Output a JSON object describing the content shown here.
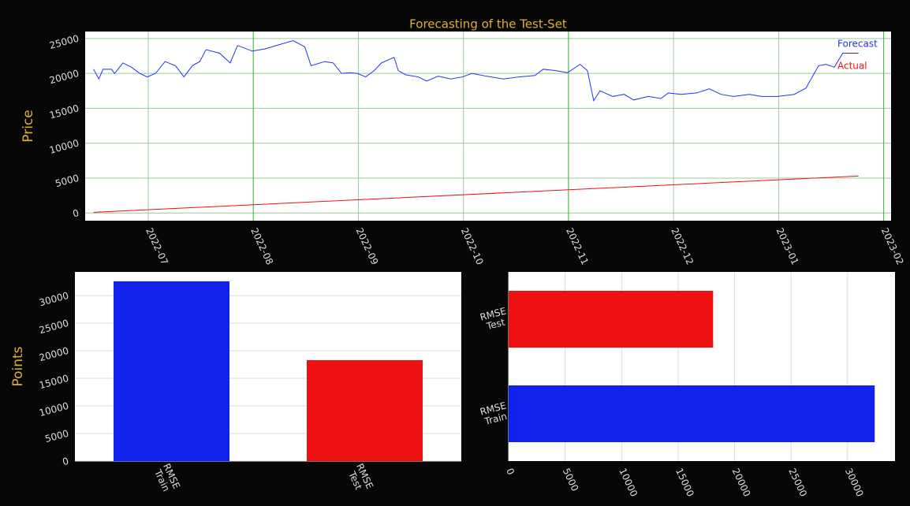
{
  "chart_data": [
    {
      "type": "line",
      "title": "Forecasting of the Test-Set",
      "ylabel": "Price",
      "xlim": [
        -0.6,
        7.07
      ],
      "xticks": [
        {
          "value": 0,
          "label": "2022-07"
        },
        {
          "value": 1,
          "label": "2022-08"
        },
        {
          "value": 2,
          "label": "2022-09"
        },
        {
          "value": 3,
          "label": "2022-10"
        },
        {
          "value": 4,
          "label": "2022-11"
        },
        {
          "value": 5,
          "label": "2022-12"
        },
        {
          "value": 6,
          "label": "2023-01"
        },
        {
          "value": 7,
          "label": "2023-02"
        }
      ],
      "ylim": [
        -1100,
        26000
      ],
      "yticks": [
        0,
        5000,
        10000,
        15000,
        20000,
        25000
      ],
      "grid": true,
      "legend": "upper right",
      "series": [
        {
          "name": "Forecast",
          "color": "#2233ee",
          "x": [
            -0.52,
            -0.47,
            -0.43,
            -0.35,
            -0.32,
            -0.24,
            -0.16,
            -0.08,
            -0.01,
            0.07,
            0.16,
            0.26,
            0.34,
            0.42,
            0.49,
            0.55,
            0.68,
            0.78,
            0.85,
            0.99,
            1.11,
            1.22,
            1.38,
            1.49,
            1.55,
            1.68,
            1.76,
            1.84,
            1.92,
            1.99,
            2.07,
            2.15,
            2.22,
            2.34,
            2.38,
            2.45,
            2.57,
            2.65,
            2.76,
            2.88,
            2.99,
            3.08,
            3.22,
            3.38,
            3.53,
            3.68,
            3.76,
            3.88,
            3.99,
            4.11,
            4.18,
            4.24,
            4.3,
            4.42,
            4.53,
            4.62,
            4.76,
            4.88,
            4.95,
            5.07,
            5.22,
            5.34,
            5.45,
            5.57,
            5.72,
            5.84,
            5.99,
            6.15,
            6.26,
            6.38,
            6.45,
            6.53,
            6.61,
            6.76
          ],
          "values": [
            20600,
            19200,
            20600,
            20600,
            20000,
            21500,
            20900,
            20000,
            19500,
            20000,
            21700,
            21100,
            19500,
            21100,
            21700,
            23400,
            22900,
            21500,
            24000,
            23200,
            23500,
            24000,
            24700,
            23800,
            21100,
            21700,
            21500,
            20000,
            20100,
            20000,
            19500,
            20400,
            21500,
            22300,
            20400,
            19800,
            19500,
            18900,
            19600,
            19200,
            19500,
            20000,
            19600,
            19200,
            19500,
            19700,
            20600,
            20400,
            20100,
            21300,
            20400,
            16100,
            17500,
            16700,
            17000,
            16200,
            16700,
            16400,
            17200,
            17000,
            17200,
            17800,
            17000,
            16700,
            17000,
            16700,
            16700,
            17000,
            17900,
            21100,
            21300,
            20900,
            22900,
            22900
          ]
        },
        {
          "name": "Actual",
          "color": "#ee1111",
          "x": [
            -0.52,
            6.76
          ],
          "values": [
            100,
            5300
          ]
        }
      ]
    },
    {
      "type": "bar",
      "ylabel": "Points",
      "categories": [
        "RMSE Train",
        "RMSE Test"
      ],
      "values": [
        32600,
        18300
      ],
      "colors": [
        "#1122ee",
        "#ee1111"
      ],
      "ylim": [
        0,
        34300
      ],
      "yticks": [
        0,
        5000,
        10000,
        15000,
        20000,
        25000,
        30000
      ],
      "grid": true
    },
    {
      "type": "barh",
      "categories": [
        "RMSE Train",
        "RMSE Test"
      ],
      "values": [
        32400,
        18100
      ],
      "colors": [
        "#1122ee",
        "#ee1111"
      ],
      "xlim": [
        0,
        34200
      ],
      "xticks": [
        0,
        5000,
        10000,
        15000,
        20000,
        25000,
        30000
      ],
      "grid": true
    }
  ]
}
